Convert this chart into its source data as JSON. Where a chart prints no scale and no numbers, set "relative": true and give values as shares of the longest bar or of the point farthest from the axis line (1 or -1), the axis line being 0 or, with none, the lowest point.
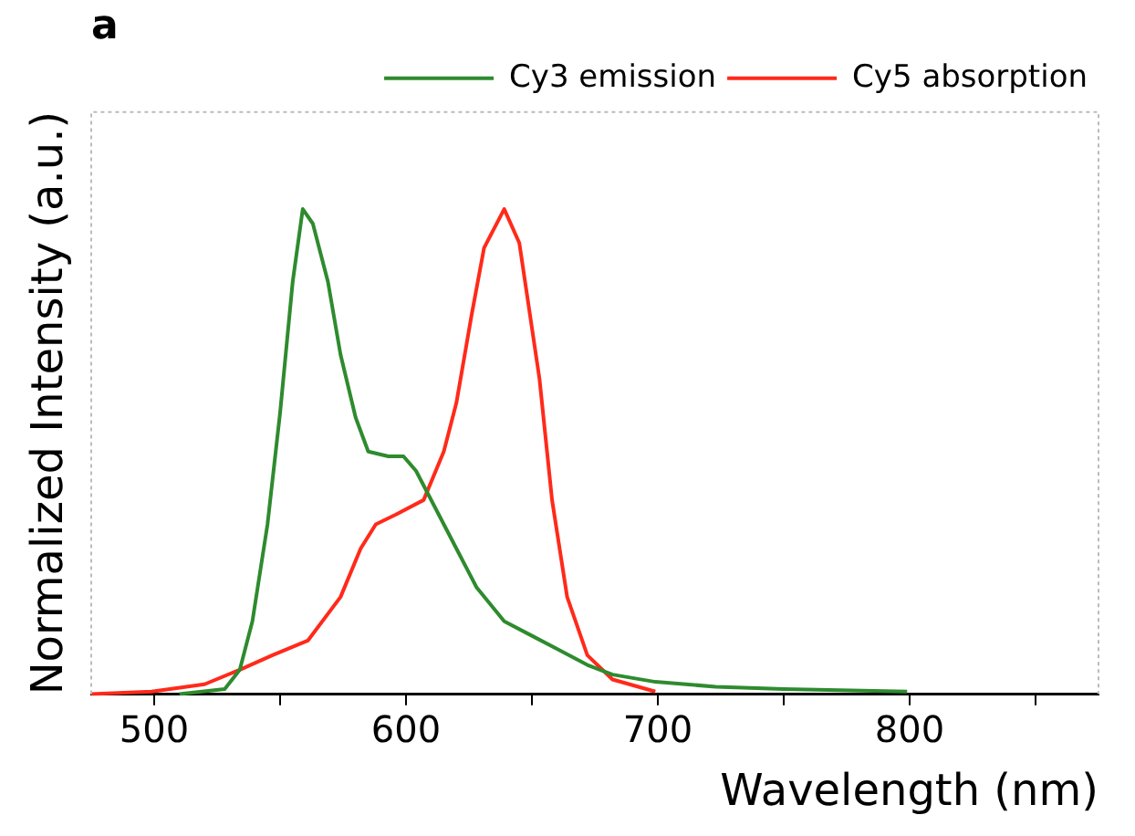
{
  "chart_data": {
    "type": "line",
    "title": "a",
    "xlabel": "Wavelength (nm)",
    "ylabel": "Normalized Intensity (a.u.)",
    "relative": true,
    "xlim": [
      475,
      875
    ],
    "xticks": [
      500,
      {
        "value": 550,
        "label": null
      },
      600,
      {
        "value": 650,
        "label": null
      },
      700,
      {
        "value": 750,
        "label": null
      },
      800,
      {
        "value": 850,
        "label": null
      }
    ],
    "legend": "top right",
    "grid": false,
    "marker": "none",
    "line_style": "solid",
    "series": [
      {
        "name": "Cy3 emission",
        "color": "#2e8b2e",
        "x": [
          510,
          528,
          534,
          539,
          545,
          550,
          555,
          559,
          563,
          569,
          574,
          580,
          585,
          593,
          599,
          604,
          612,
          620,
          628,
          639,
          650,
          661,
          672,
          682,
          699,
          723,
          750,
          799
        ],
        "values": [
          0,
          0.01,
          0.05,
          0.15,
          0.35,
          0.58,
          0.85,
          1.0,
          0.97,
          0.85,
          0.7,
          0.57,
          0.5,
          0.49,
          0.49,
          0.46,
          0.38,
          0.3,
          0.22,
          0.15,
          0.12,
          0.09,
          0.06,
          0.04,
          0.025,
          0.015,
          0.01,
          0.005
        ]
      },
      {
        "name": "Cy5 absorption",
        "color": "#ff2a1a",
        "x": [
          475,
          499,
          520,
          534,
          547,
          561,
          574,
          582,
          588,
          596,
          607,
          615,
          620,
          626,
          631,
          639,
          645,
          653,
          658,
          664,
          672,
          682,
          699
        ],
        "values": [
          0,
          0.005,
          0.02,
          0.05,
          0.08,
          0.11,
          0.2,
          0.3,
          0.35,
          0.37,
          0.4,
          0.5,
          0.6,
          0.78,
          0.92,
          1.0,
          0.93,
          0.65,
          0.4,
          0.2,
          0.08,
          0.03,
          0.005
        ]
      }
    ]
  }
}
